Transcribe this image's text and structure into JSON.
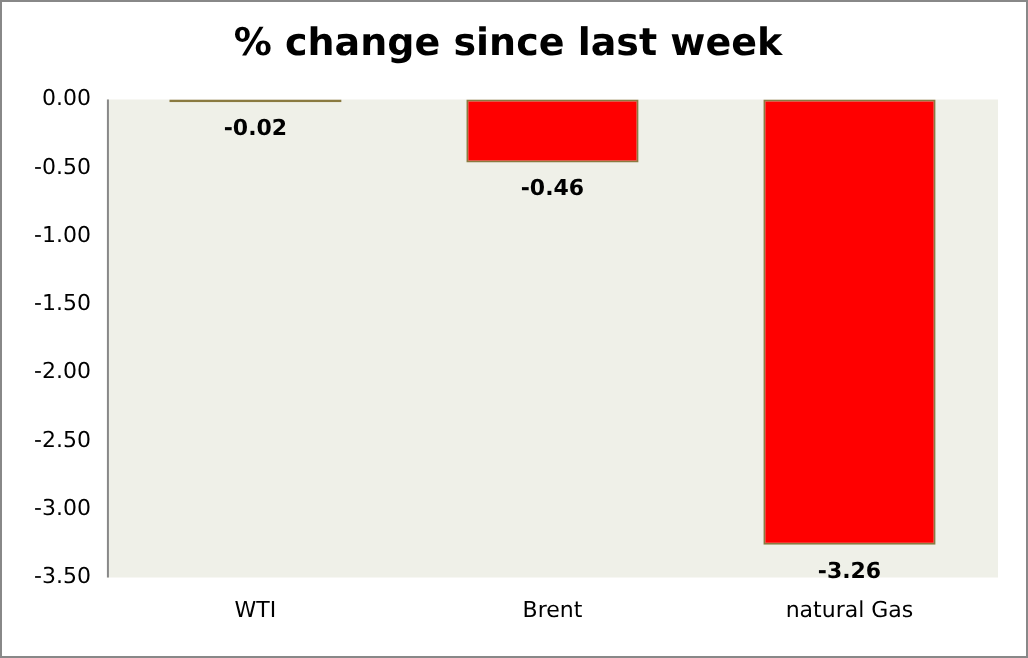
{
  "chart_data": {
    "type": "bar",
    "title": "% change since last week",
    "categories": [
      "WTI",
      "Brent",
      "natural Gas"
    ],
    "values": [
      -0.02,
      -0.46,
      -3.26
    ],
    "colors": [
      "#8a7a40",
      "#ff0000",
      "#ff0000"
    ],
    "ylim": [
      -3.5,
      0
    ],
    "yticks": [
      {
        "value": 0,
        "label": "0.00"
      },
      {
        "value": -0.5,
        "label": "-0.50"
      },
      {
        "value": -1,
        "label": "-1.00"
      },
      {
        "value": -1.5,
        "label": "-1.50"
      },
      {
        "value": -2,
        "label": "-2.00"
      },
      {
        "value": -2.5,
        "label": "-2.50"
      },
      {
        "value": -3,
        "label": "-3.00"
      },
      {
        "value": -3.5,
        "label": "-3.50"
      }
    ],
    "grid": false,
    "legend": false,
    "data_labels": true
  }
}
